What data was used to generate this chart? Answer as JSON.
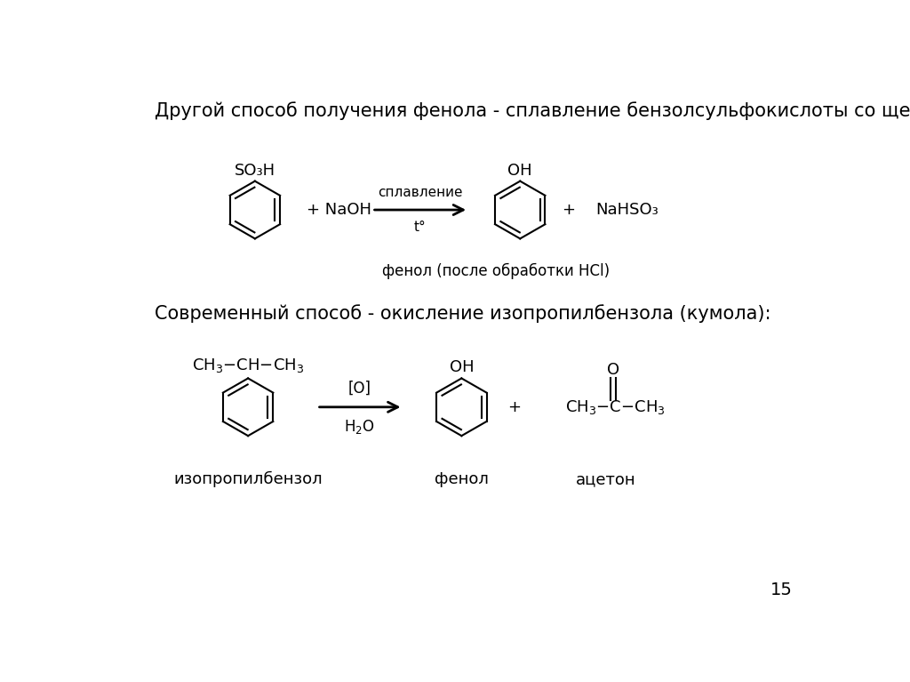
{
  "bg_color": "#ffffff",
  "title1": "Другой способ получения фенола - сплавление бензолсульфокислоты со щелочью:",
  "title2": "Современный способ - окисление изопропилбензола (кумола):",
  "page_number": "15",
  "reaction1": {
    "reagent1_formula": "SO₃H",
    "plus1": "+ NaOH",
    "arrow_top": "сплавление",
    "arrow_bottom": "t°",
    "product1_formula": "OH",
    "plus2": "+",
    "product2_formula": "NaHSO₃",
    "caption": "фенол (после обработки HCl)"
  },
  "reaction2": {
    "reagent1_top": "CH₃–CH–CH₃",
    "arrow_top": "[O]",
    "arrow_bottom": "H₂O",
    "product1_formula": "OH",
    "plus": "+",
    "product2_top": "O",
    "product2_formula": "CH₃–C–CH₃",
    "label1": "изопропилбензол",
    "label2": "фенол",
    "label3": "ацетон"
  },
  "font_size_title": 15,
  "font_size_formula": 13,
  "font_size_label": 13,
  "font_size_page": 14
}
